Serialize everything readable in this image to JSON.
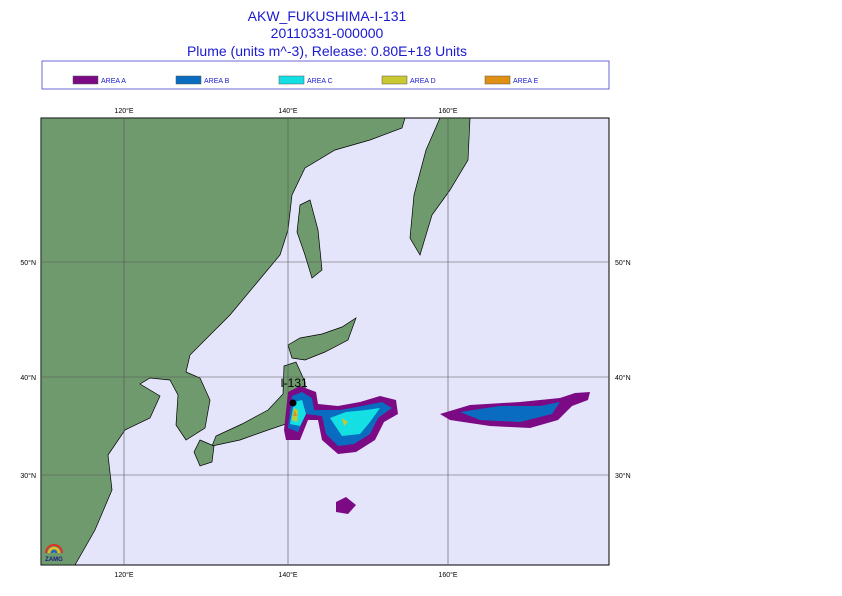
{
  "header": {
    "title": "AKW_FUKUSHIMA-I-131",
    "date": "20110331-000000",
    "subtitle": "Plume (units m^-3), Release:  0.80E+18 Units"
  },
  "legend": [
    {
      "label": "AREA A",
      "color": "#7b0a84"
    },
    {
      "label": "AREA B",
      "color": "#0a6cc0"
    },
    {
      "label": "AREA C",
      "color": "#14e0e4"
    },
    {
      "label": "AREA D",
      "color": "#c8c832"
    },
    {
      "label": "AREA E",
      "color": "#e09010"
    }
  ],
  "map": {
    "lon_labels": [
      "120°E",
      "140°E",
      "160°E"
    ],
    "lat_labels": [
      "50°N",
      "40°N",
      "30°N"
    ],
    "source_label": "I-131",
    "logo": "ZAMG"
  }
}
